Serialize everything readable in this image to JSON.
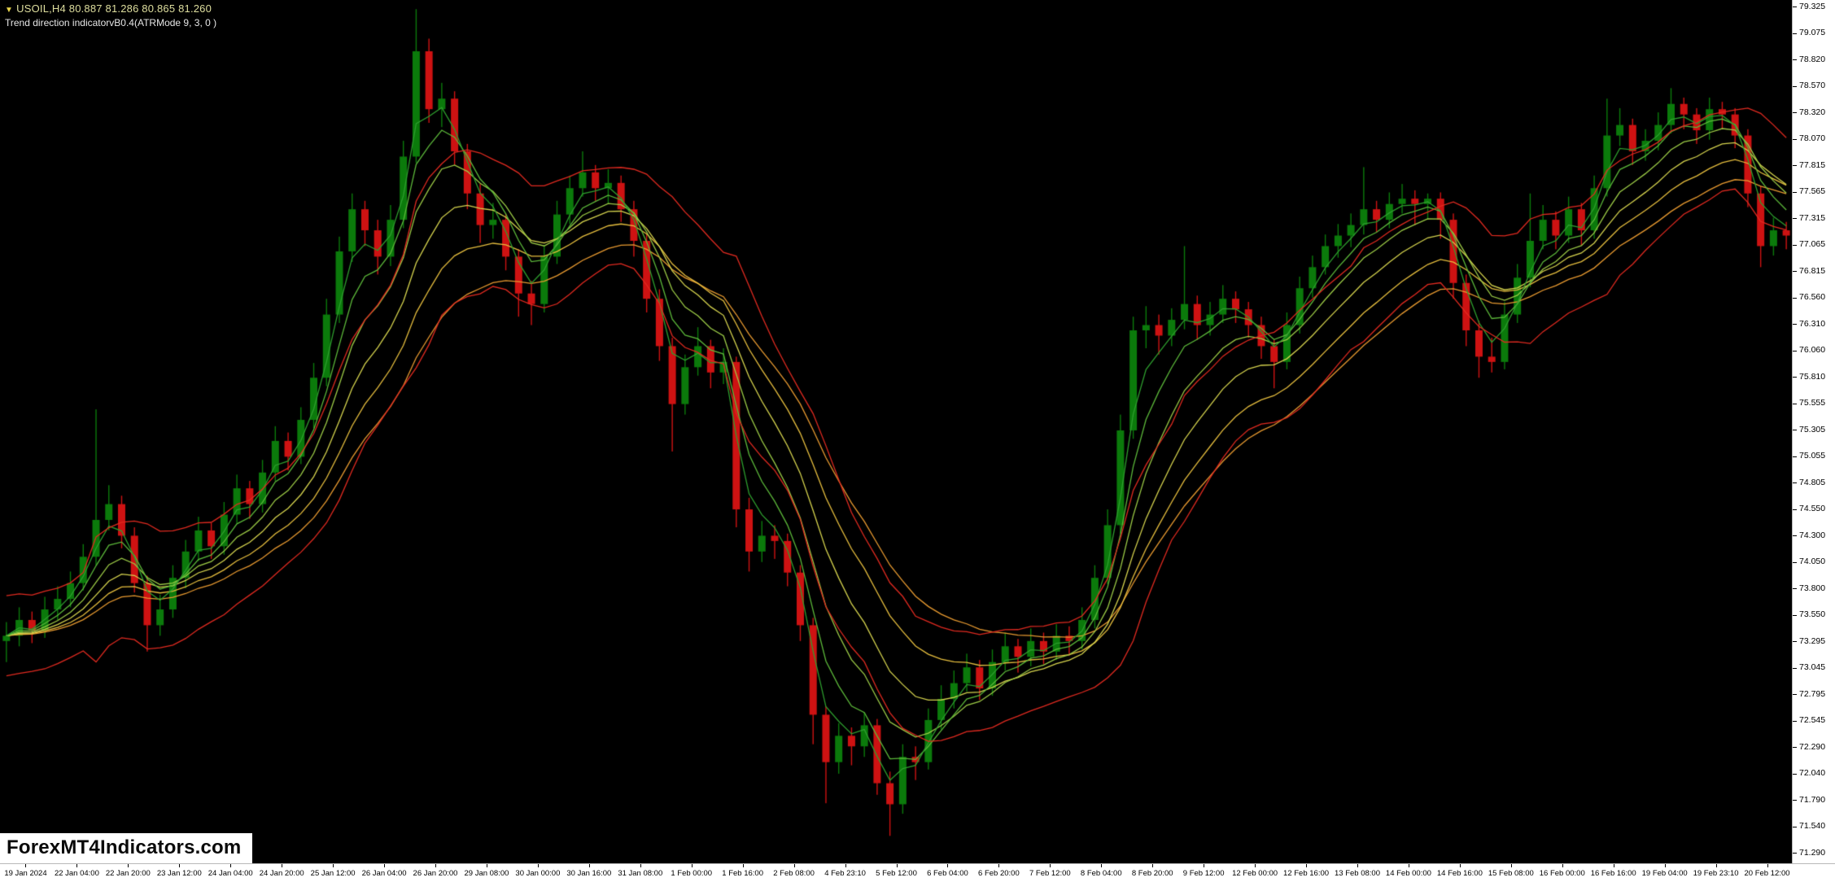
{
  "header": {
    "marker": "▼",
    "symbol_line": "USOIL,H4  80.887 81.286 80.865 81.260",
    "indicator_line": "Trend direction indicatorvB0.4(ATRMode 9, 3, 0 )"
  },
  "watermark": {
    "text": "ForexMT4Indicators.com"
  },
  "colors": {
    "background": "#000000",
    "bull_candle": "#0B7A0B",
    "bear_candle": "#CE1212",
    "band_red": "#E02A20",
    "axis_bg": "#FFFFFF",
    "axis_text": "#000000"
  },
  "chart_data": {
    "type": "candlestick",
    "symbol": "USOIL",
    "timeframe": "H4",
    "quote": {
      "open": "80.887",
      "high": "81.286",
      "low": "80.865",
      "close": "81.260"
    },
    "y_axis": {
      "top_price": 79.325,
      "bottom_price": 71.29,
      "labels": [
        "79.325",
        "79.075",
        "78.820",
        "78.570",
        "78.320",
        "78.070",
        "77.815",
        "77.565",
        "77.315",
        "77.065",
        "76.815",
        "76.560",
        "76.310",
        "76.060",
        "75.810",
        "75.555",
        "75.305",
        "75.055",
        "74.805",
        "74.550",
        "74.300",
        "74.050",
        "73.800",
        "73.550",
        "73.295",
        "73.045",
        "72.795",
        "72.545",
        "72.290",
        "72.040",
        "71.790",
        "71.540",
        "71.290"
      ]
    },
    "x_axis": {
      "bars_per_label": 4,
      "first_label_bar": 1.5,
      "labels": [
        "19 Jan 2024",
        "22 Jan 04:00",
        "22 Jan 20:00",
        "23 Jan 12:00",
        "24 Jan 04:00",
        "24 Jan 20:00",
        "25 Jan 12:00",
        "26 Jan 04:00",
        "26 Jan 20:00",
        "29 Jan 08:00",
        "30 Jan 00:00",
        "30 Jan 16:00",
        "31 Jan 08:00",
        "1 Feb 00:00",
        "1 Feb 16:00",
        "2 Feb 08:00",
        "4 Feb 23:10",
        "5 Feb 12:00",
        "6 Feb 04:00",
        "6 Feb 20:00",
        "7 Feb 12:00",
        "8 Feb 04:00",
        "8 Feb 20:00",
        "9 Feb 12:00",
        "12 Feb 00:00",
        "12 Feb 16:00",
        "13 Feb 08:00",
        "14 Feb 00:00",
        "14 Feb 16:00",
        "15 Feb 08:00",
        "16 Feb 00:00",
        "16 Feb 16:00",
        "19 Feb 04:00",
        "19 Feb 23:10",
        "20 Feb 12:00"
      ]
    },
    "overlays": {
      "ma_ribbon": {
        "periods": [
          3,
          5,
          8,
          12,
          17,
          23
        ],
        "colors": [
          "#2E9E2E",
          "#5CB83A",
          "#9CCB46",
          "#D6D44E",
          "#E6BE3E",
          "#E89A30"
        ]
      },
      "atr_bands": {
        "base_period": 14,
        "atr_period": 9,
        "multiplier": 1.0,
        "color": "#E02A20"
      }
    },
    "candles": [
      [
        73.3,
        73.48,
        73.1,
        73.35
      ],
      [
        73.35,
        73.62,
        73.25,
        73.5
      ],
      [
        73.5,
        73.58,
        73.28,
        73.4
      ],
      [
        73.4,
        73.72,
        73.33,
        73.6
      ],
      [
        73.6,
        73.82,
        73.5,
        73.7
      ],
      [
        73.7,
        73.96,
        73.62,
        73.85
      ],
      [
        73.85,
        74.22,
        73.78,
        74.1
      ],
      [
        74.1,
        75.5,
        74.02,
        74.45
      ],
      [
        74.45,
        74.78,
        74.35,
        74.6
      ],
      [
        74.6,
        74.68,
        74.18,
        74.3
      ],
      [
        74.3,
        74.38,
        73.76,
        73.85
      ],
      [
        73.85,
        73.92,
        73.2,
        73.45
      ],
      [
        73.45,
        73.74,
        73.35,
        73.6
      ],
      [
        73.6,
        74.02,
        73.52,
        73.9
      ],
      [
        73.9,
        74.26,
        73.8,
        74.15
      ],
      [
        74.15,
        74.48,
        74.06,
        74.35
      ],
      [
        74.35,
        74.42,
        74.08,
        74.2
      ],
      [
        74.2,
        74.62,
        74.12,
        74.5
      ],
      [
        74.5,
        74.88,
        74.42,
        74.75
      ],
      [
        74.75,
        74.82,
        74.46,
        74.6
      ],
      [
        74.6,
        75.02,
        74.52,
        74.9
      ],
      [
        74.9,
        75.34,
        74.82,
        75.2
      ],
      [
        75.2,
        75.28,
        74.92,
        75.05
      ],
      [
        75.05,
        75.52,
        74.98,
        75.4
      ],
      [
        75.4,
        75.94,
        75.32,
        75.8
      ],
      [
        75.8,
        76.55,
        75.72,
        76.4
      ],
      [
        76.4,
        77.14,
        76.32,
        77.0
      ],
      [
        77.0,
        77.55,
        76.9,
        77.4
      ],
      [
        77.4,
        77.48,
        77.05,
        77.2
      ],
      [
        77.2,
        77.3,
        76.78,
        76.95
      ],
      [
        76.95,
        77.44,
        76.86,
        77.3
      ],
      [
        77.3,
        78.05,
        77.22,
        77.9
      ],
      [
        77.9,
        79.3,
        77.84,
        78.9
      ],
      [
        78.9,
        79.02,
        78.22,
        78.35
      ],
      [
        78.35,
        78.6,
        78.18,
        78.45
      ],
      [
        78.45,
        78.52,
        77.82,
        77.95
      ],
      [
        77.95,
        78.02,
        77.4,
        77.55
      ],
      [
        77.55,
        77.64,
        77.08,
        77.25
      ],
      [
        77.25,
        77.46,
        77.12,
        77.3
      ],
      [
        77.3,
        77.36,
        76.82,
        76.95
      ],
      [
        76.95,
        77.02,
        76.38,
        76.6
      ],
      [
        76.6,
        76.72,
        76.3,
        76.5
      ],
      [
        76.5,
        77.06,
        76.42,
        76.95
      ],
      [
        76.95,
        77.48,
        76.88,
        77.35
      ],
      [
        77.35,
        77.72,
        77.26,
        77.6
      ],
      [
        77.6,
        77.95,
        77.52,
        77.75
      ],
      [
        77.75,
        77.82,
        77.48,
        77.6
      ],
      [
        77.6,
        77.78,
        77.45,
        77.65
      ],
      [
        77.65,
        77.72,
        77.28,
        77.4
      ],
      [
        77.4,
        77.48,
        76.95,
        77.1
      ],
      [
        77.1,
        77.16,
        76.42,
        76.55
      ],
      [
        76.55,
        76.64,
        75.96,
        76.1
      ],
      [
        76.1,
        76.18,
        75.1,
        75.55
      ],
      [
        75.55,
        76.02,
        75.45,
        75.9
      ],
      [
        75.9,
        76.28,
        75.82,
        76.1
      ],
      [
        76.1,
        76.16,
        75.7,
        75.85
      ],
      [
        75.85,
        76.08,
        75.74,
        75.95
      ],
      [
        75.95,
        76.0,
        74.38,
        74.55
      ],
      [
        74.55,
        74.66,
        73.96,
        74.15
      ],
      [
        74.15,
        74.44,
        74.05,
        74.3
      ],
      [
        74.3,
        74.4,
        74.08,
        74.25
      ],
      [
        74.25,
        74.32,
        73.82,
        73.95
      ],
      [
        73.95,
        74.02,
        73.3,
        73.45
      ],
      [
        73.45,
        73.52,
        72.32,
        72.6
      ],
      [
        72.6,
        72.68,
        71.76,
        72.15
      ],
      [
        72.15,
        72.52,
        72.04,
        72.4
      ],
      [
        72.4,
        72.48,
        72.12,
        72.3
      ],
      [
        72.3,
        72.62,
        72.2,
        72.5
      ],
      [
        72.5,
        72.56,
        71.84,
        71.95
      ],
      [
        71.95,
        72.06,
        71.45,
        71.75
      ],
      [
        71.75,
        72.32,
        71.66,
        72.2
      ],
      [
        72.2,
        72.3,
        71.98,
        72.15
      ],
      [
        72.15,
        72.66,
        72.08,
        72.55
      ],
      [
        72.55,
        72.88,
        72.46,
        72.75
      ],
      [
        72.75,
        73.02,
        72.66,
        72.9
      ],
      [
        72.9,
        73.18,
        72.82,
        73.05
      ],
      [
        73.05,
        73.12,
        72.74,
        72.85
      ],
      [
        72.85,
        73.22,
        72.78,
        73.1
      ],
      [
        73.1,
        73.38,
        73.02,
        73.25
      ],
      [
        73.25,
        73.32,
        73.0,
        73.15
      ],
      [
        73.15,
        73.42,
        73.06,
        73.3
      ],
      [
        73.3,
        73.38,
        73.08,
        73.2
      ],
      [
        73.2,
        73.46,
        73.12,
        73.35
      ],
      [
        73.35,
        73.44,
        73.16,
        73.3
      ],
      [
        73.3,
        73.62,
        73.22,
        73.5
      ],
      [
        73.5,
        74.02,
        73.42,
        73.9
      ],
      [
        73.9,
        74.55,
        73.84,
        74.4
      ],
      [
        74.4,
        75.45,
        74.32,
        75.3
      ],
      [
        75.3,
        76.38,
        75.22,
        76.25
      ],
      [
        76.25,
        76.48,
        76.08,
        76.3
      ],
      [
        76.3,
        76.4,
        76.02,
        76.2
      ],
      [
        76.2,
        76.46,
        76.1,
        76.35
      ],
      [
        76.35,
        77.05,
        76.26,
        76.5
      ],
      [
        76.5,
        76.58,
        76.16,
        76.3
      ],
      [
        76.3,
        76.52,
        76.2,
        76.4
      ],
      [
        76.4,
        76.68,
        76.32,
        76.55
      ],
      [
        76.55,
        76.62,
        76.32,
        76.45
      ],
      [
        76.45,
        76.52,
        76.18,
        76.3
      ],
      [
        76.3,
        76.38,
        75.98,
        76.1
      ],
      [
        76.1,
        76.16,
        75.7,
        75.95
      ],
      [
        75.95,
        76.42,
        75.88,
        76.3
      ],
      [
        76.3,
        76.76,
        76.22,
        76.65
      ],
      [
        76.65,
        76.96,
        76.56,
        76.85
      ],
      [
        76.85,
        77.16,
        76.78,
        77.05
      ],
      [
        77.05,
        77.26,
        76.94,
        77.15
      ],
      [
        77.15,
        77.36,
        77.04,
        77.25
      ],
      [
        77.25,
        77.8,
        77.16,
        77.4
      ],
      [
        77.4,
        77.48,
        77.18,
        77.3
      ],
      [
        77.3,
        77.56,
        77.22,
        77.45
      ],
      [
        77.45,
        77.64,
        77.36,
        77.5
      ],
      [
        77.5,
        77.58,
        77.25,
        77.45
      ],
      [
        77.45,
        77.55,
        77.3,
        77.5
      ],
      [
        77.5,
        77.56,
        77.12,
        77.3
      ],
      [
        77.3,
        77.36,
        76.55,
        76.7
      ],
      [
        76.7,
        76.78,
        76.1,
        76.25
      ],
      [
        76.25,
        76.34,
        75.8,
        76.0
      ],
      [
        76.0,
        76.18,
        75.85,
        75.95
      ],
      [
        75.95,
        76.52,
        75.88,
        76.4
      ],
      [
        76.4,
        76.88,
        76.32,
        76.75
      ],
      [
        76.75,
        77.55,
        76.66,
        77.1
      ],
      [
        77.1,
        77.44,
        77.02,
        77.3
      ],
      [
        77.3,
        77.38,
        77.02,
        77.15
      ],
      [
        77.15,
        77.52,
        77.08,
        77.4
      ],
      [
        77.4,
        77.46,
        77.06,
        77.2
      ],
      [
        77.2,
        77.72,
        77.12,
        77.6
      ],
      [
        77.6,
        78.45,
        77.52,
        78.1
      ],
      [
        78.1,
        78.36,
        78.0,
        78.2
      ],
      [
        78.2,
        78.26,
        77.82,
        77.95
      ],
      [
        77.95,
        78.16,
        77.86,
        78.05
      ],
      [
        78.05,
        78.32,
        77.96,
        78.2
      ],
      [
        78.2,
        78.55,
        78.12,
        78.4
      ],
      [
        78.4,
        78.46,
        78.16,
        78.3
      ],
      [
        78.3,
        78.36,
        78.02,
        78.15
      ],
      [
        78.15,
        78.46,
        78.06,
        78.35
      ],
      [
        78.35,
        78.42,
        78.16,
        78.3
      ],
      [
        78.3,
        78.36,
        77.98,
        78.1
      ],
      [
        78.1,
        78.16,
        77.42,
        77.55
      ],
      [
        77.55,
        77.62,
        76.85,
        77.05
      ],
      [
        77.05,
        77.32,
        76.96,
        77.2
      ],
      [
        77.2,
        77.28,
        77.02,
        77.15
      ]
    ]
  }
}
